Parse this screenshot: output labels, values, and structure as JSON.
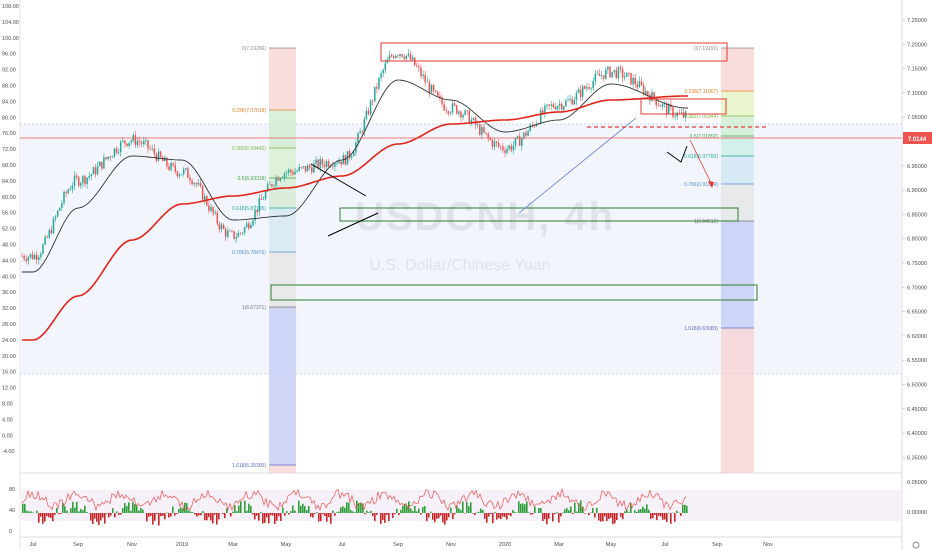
{
  "watermark": {
    "symbol": "USDCNH, 4h",
    "name": "U.S. Dollar/Chinese Yuan"
  },
  "price_badge": "7.0144",
  "left_axis_ticks": [
    "108.00",
    "104.00",
    "100.00",
    "96.00",
    "92.00",
    "88.00",
    "84.00",
    "80.00",
    "76.00",
    "72.00",
    "68.00",
    "64.00",
    "60.00",
    "56.00",
    "52.00",
    "48.00",
    "44.00",
    "40.00",
    "36.00",
    "32.00",
    "28.00",
    "24.00",
    "20.00",
    "16.00",
    "12.00",
    "8.00",
    "4.00",
    "0.00",
    "-4.00"
  ],
  "right_axis_ticks": [
    "7.25000",
    "7.20000",
    "7.15000",
    "7.10000",
    "7.05000",
    "7.00000",
    "6.95000",
    "6.90000",
    "6.85000",
    "6.80000",
    "6.75000",
    "6.70000",
    "6.65000",
    "6.60000",
    "6.55000",
    "6.50000",
    "6.45000",
    "6.40000",
    "6.35000"
  ],
  "time_axis": [
    "Jul",
    "Sep",
    "Nov",
    "2019",
    "Mar",
    "May",
    "Jul",
    "Sep",
    "Nov",
    "2020",
    "Mar",
    "May",
    "Jul",
    "Sep",
    "Nov"
  ],
  "oscillator_left_ticks": [
    "80",
    "40",
    "0"
  ],
  "oscillator_right_ticks": [
    "0.05000",
    "0.00000"
  ],
  "fib_left": [
    "0(7.19266)",
    "0.236(7.07018)",
    "0.382(6.99442)",
    "0.5(6.93318)",
    "0.618(6.87195)",
    "0.786(6.78476)",
    "1(6.67371)",
    "1.618(6.35300)"
  ],
  "fib_right": [
    "0(7.19191)",
    "0.236(7.11007)",
    "0.382(7.05944)",
    "0.5(7.01852)",
    "0.618(6.97760)",
    "0.786(6.91934)",
    "1(6.84512)",
    "1.618(6.63083)"
  ],
  "colors": {
    "up": "#26a69a",
    "down": "#ef5350",
    "ma_slow": "#e0241b",
    "ma_fast": "#333333",
    "box_red": "#e53935",
    "box_green": "#2e7d32"
  },
  "chart_data": {
    "type": "line",
    "title": "USDCNH, 4h",
    "subtitle": "U.S. Dollar/Chinese Yuan",
    "x": [
      "Jul",
      "Sep",
      "Nov",
      "2019",
      "Mar",
      "May",
      "Jul",
      "Sep",
      "Nov",
      "2020",
      "Mar",
      "May",
      "Jul"
    ],
    "series": [
      {
        "name": "USDCNH",
        "values": [
          6.66,
          6.85,
          6.95,
          6.87,
          6.71,
          6.87,
          6.9,
          7.17,
          7.03,
          6.93,
          7.04,
          7.12,
          7.01
        ]
      },
      {
        "values": [
          6.62,
          6.78,
          6.91,
          6.9,
          6.75,
          6.76,
          6.9,
          7.1,
          7.05,
          6.97,
          7.0,
          7.09,
          7.03
        ]
      },
      {
        "values": [
          6.45,
          6.56,
          6.7,
          6.79,
          6.81,
          6.83,
          6.86,
          6.94,
          6.99,
          7.0,
          7.02,
          7.05,
          7.06
        ]
      }
    ],
    "ylim": [
      6.33,
      7.27
    ],
    "y_ticks": [
      7.25,
      7.2,
      7.15,
      7.1,
      7.05,
      7.0,
      6.95,
      6.9,
      6.85,
      6.8,
      6.75,
      6.7,
      6.65,
      6.6,
      6.55,
      6.5,
      6.45,
      6.4,
      6.35
    ],
    "last_price": 7.0144,
    "grid": false
  }
}
